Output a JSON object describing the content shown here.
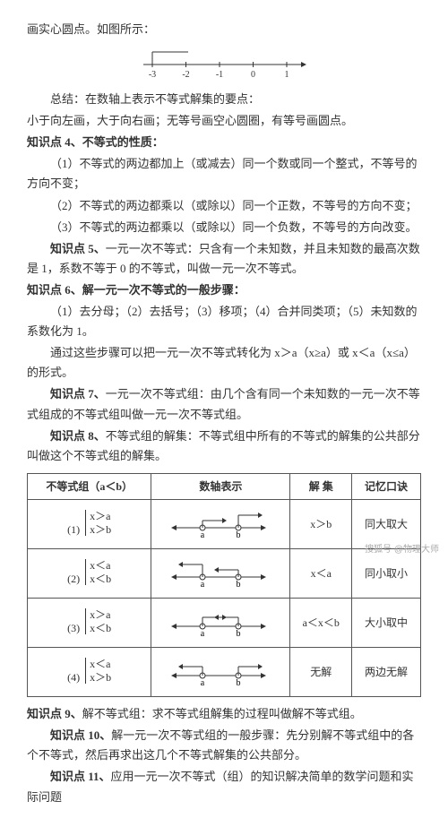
{
  "intro": "画实心圆点。如图所示：",
  "numberline": {
    "ticks": [
      "-3",
      "-2",
      "-1",
      "0",
      "1"
    ],
    "line_color": "#333",
    "width": 180
  },
  "summary1": "总结：在数轴上表示不等式解集的要点：",
  "summary2": "小于向左画，大于向右画；无等号画空心圆圈，有等号画圆点。",
  "k4_title": "知识点 4、不等式的性质：",
  "k4_1": "（1）不等式的两边都加上（或减去）同一个数或同一个整式，不等号的方向不变；",
  "k4_2": "（2）不等式的两边都乘以（或除以）同一个正数，不等号的方向不变；",
  "k4_3": "（3）不等式的两边都乘以（或除以）同一个负数，不等号的方向改变。",
  "k5": "知识点 5、一元一次不等式：只含有一个未知数，并且未知数的最高次数是 1，系数不等于 0 的不等式，叫做一元一次不等式。",
  "k6_title": "知识点 6、解一元一次不等式的一般步骤：",
  "k6_1": "（1）去分母；（2）去括号；（3）移项；（4）合并同类项；（5）未知数的系数化为 1。",
  "k6_2": "通过这些步骤可以把一元一次不等式转化为 x＞a（x≥a）或 x＜a（x≤a）的形式。",
  "k7": "知识点 7、一元一次不等式组：由几个含有同一个未知数的一元一次不等式组成的不等式组叫做一元一次不等式组。",
  "k8": "知识点 8、不等式组的解集：不等式组中所有的不等式的解集的公共部分叫做这个不等式组的解集。",
  "table": {
    "h1": "不等式组（a＜b）",
    "h2": "数轴表示",
    "h3": "解  集",
    "h4": "记忆口诀",
    "rows": [
      {
        "n": "(1)",
        "c1": "x＞a",
        "c2": "x＞b",
        "sol": "x＞b",
        "m": "同大取大",
        "dir": "gg"
      },
      {
        "n": "(2)",
        "c1": "x＜a",
        "c2": "x＜b",
        "sol": "x＜a",
        "m": "同小取小",
        "dir": "ll"
      },
      {
        "n": "(3)",
        "c1": "x＞a",
        "c2": "x＜b",
        "sol": "a＜x＜b",
        "m": "大小取中",
        "dir": "gl"
      },
      {
        "n": "(4)",
        "c1": "x＜a",
        "c2": "x＞b",
        "sol": "无解",
        "m": "两边无解",
        "dir": "lg"
      }
    ],
    "labels": {
      "a": "a",
      "b": "b"
    },
    "colors": {
      "line": "#333",
      "bg": "#fff"
    }
  },
  "k9": "知识点 9、解不等式组：求不等式组解集的过程叫做解不等式组。",
  "k10": "知识点 10、解一元一次不等式组的一般步骤：先分别解不等式组中的各个不等式，然后再求出这几个不等式解集的公共部分。",
  "k11": "知识点 11、应用一元一次不等式（组）的知识解决简单的数学问题和实际问题",
  "watermark": "搜狐号 @物理大师"
}
